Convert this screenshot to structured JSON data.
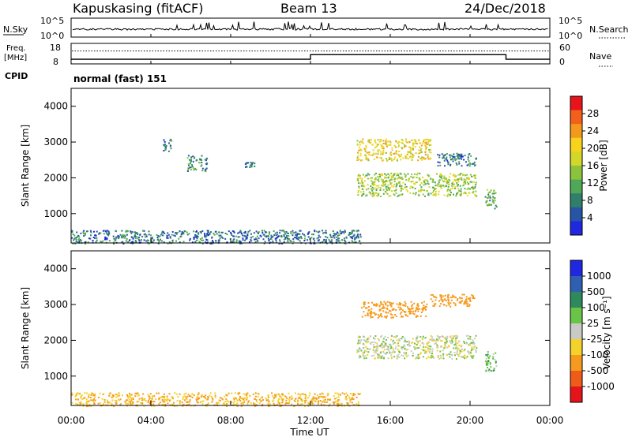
{
  "header": {
    "site": "Kapuskasing (fitACF)",
    "beam": "Beam 13",
    "date": "24/Dec/2018"
  },
  "nsky_panel": {
    "label": "N.Sky",
    "left_ticks": [
      "10^5",
      "10^0"
    ],
    "right_ticks": [
      "10^5",
      "10^0"
    ],
    "right_label": "N.Search"
  },
  "freq_panel": {
    "label_line1": "Freq.",
    "label_line2": "[MHz]",
    "left_ticks": [
      "18",
      "8"
    ],
    "right_ticks": [
      "60",
      "0"
    ],
    "right_label": "Nave",
    "cpid_label": "CPID",
    "cpid_value": "normal (fast) 151"
  },
  "x_axis": {
    "label": "Time UT",
    "ticks": [
      "00:00",
      "04:00",
      "08:00",
      "12:00",
      "16:00",
      "20:00",
      "00:00"
    ]
  },
  "y_axis": {
    "label": "Slant Range [km]",
    "ticks": [
      "4000",
      "3000",
      "2000",
      "1000"
    ]
  },
  "power_scale": {
    "label": "Power [dB]",
    "ticks": [
      "28",
      "24",
      "20",
      "16",
      "12",
      "8",
      "4"
    ],
    "colors": [
      "#e8141c",
      "#f4601a",
      "#f39a1d",
      "#f7d31c",
      "#d2d729",
      "#8bc43c",
      "#4fa856",
      "#2f7f6b",
      "#2755a5",
      "#1f28e0"
    ]
  },
  "velocity_scale": {
    "label": "Velocity [m s⁻¹]",
    "ticks": [
      "1000",
      "500",
      "100",
      "25",
      "-25",
      "-100",
      "-500",
      "-1000"
    ],
    "colors": [
      "#1f28e0",
      "#2f5fb0",
      "#2e8a5c",
      "#69c447",
      "#c9c9c5",
      "#f5d22a",
      "#f59a1d",
      "#ef5b19",
      "#e5141b"
    ]
  },
  "chart_data": {
    "type": "heatmap",
    "time_range_hours": [
      0,
      24
    ],
    "slant_range_km": [
      180,
      4500
    ],
    "cpid_program": "normal (fast) 151",
    "frequency_mhz": [
      {
        "t0": 0,
        "t1": 12,
        "value": 10.3
      },
      {
        "t0": 12,
        "t1": 21.8,
        "value": 12.5
      },
      {
        "t0": 21.8,
        "t1": 24,
        "value": 10.3
      }
    ],
    "nave_dotted_level": 14.3,
    "power_regions": [
      {
        "t0": 4.6,
        "t1": 5.0,
        "r0": 2700,
        "r1": 3100,
        "power_db": 8
      },
      {
        "t0": 5.8,
        "t1": 6.8,
        "r0": 2200,
        "r1": 2650,
        "power_db": 10
      },
      {
        "t0": 8.7,
        "t1": 9.2,
        "r0": 2300,
        "r1": 2450,
        "power_db": 8
      },
      {
        "t0": 14.3,
        "t1": 18.0,
        "r0": 2500,
        "r1": 3100,
        "power_db": 20
      },
      {
        "t0": 14.3,
        "t1": 20.3,
        "r0": 1500,
        "r1": 2150,
        "power_db": 16
      },
      {
        "t0": 18.3,
        "t1": 20.3,
        "r0": 2350,
        "r1": 2700,
        "power_db": 8
      },
      {
        "t0": 20.7,
        "t1": 21.3,
        "r0": 1150,
        "r1": 1700,
        "power_db": 12
      },
      {
        "t0": 0,
        "t1": 14.5,
        "r0": 180,
        "r1": 550,
        "power_db": 8
      }
    ],
    "velocity_regions": [
      {
        "t0": 14.5,
        "t1": 17.8,
        "r0": 2650,
        "r1": 3100,
        "velocity_ms": -400
      },
      {
        "t0": 18.0,
        "t1": 20.2,
        "r0": 2950,
        "r1": 3300,
        "velocity_ms": -300
      },
      {
        "t0": 14.3,
        "t1": 20.3,
        "r0": 1500,
        "r1": 2150,
        "velocity_ms": 0
      },
      {
        "t0": 20.7,
        "t1": 21.3,
        "r0": 1150,
        "r1": 1700,
        "velocity_ms": 60
      },
      {
        "t0": 0,
        "t1": 14.5,
        "r0": 180,
        "r1": 550,
        "velocity_ms": -100
      }
    ]
  }
}
